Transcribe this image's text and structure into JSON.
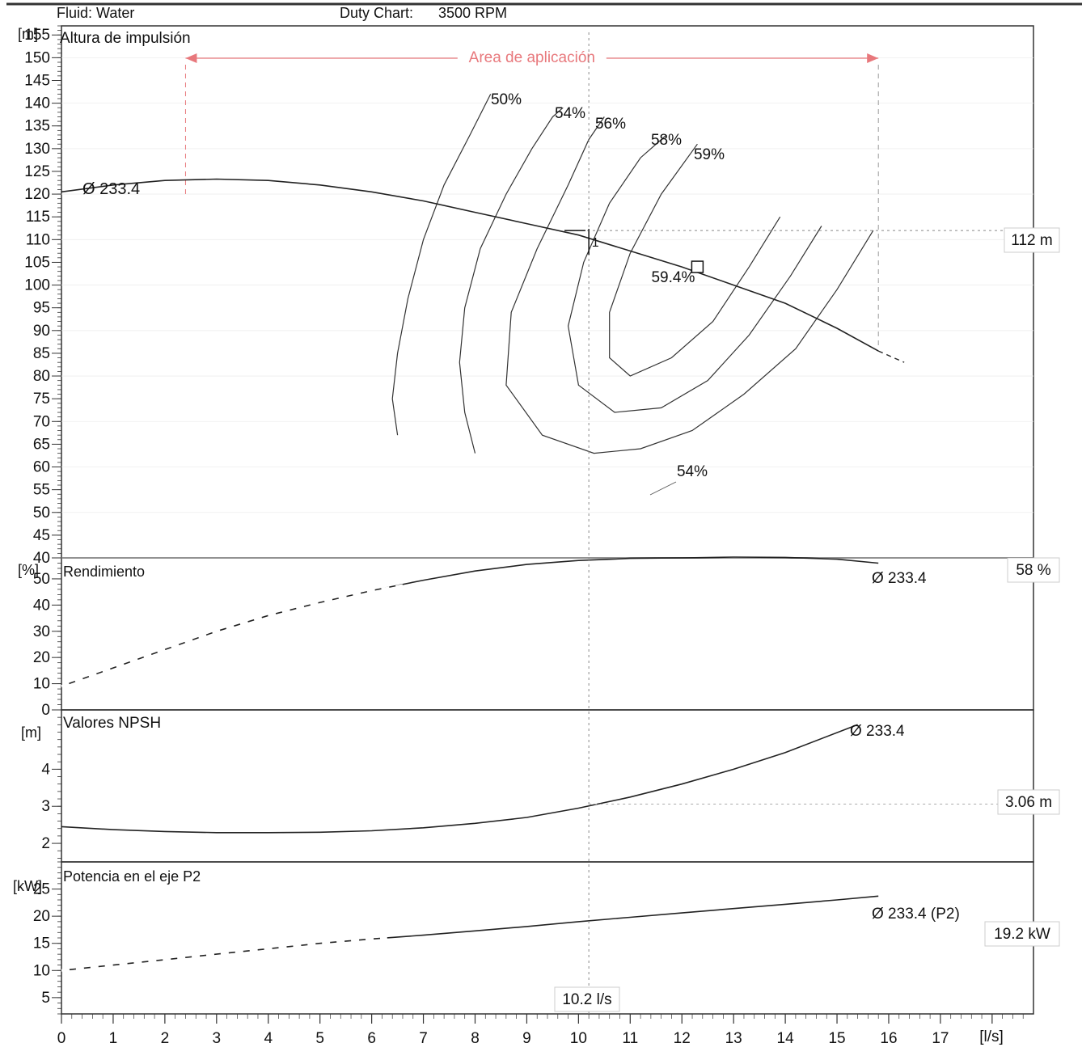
{
  "header": {
    "fluid": "Fluid: Water",
    "duty_chart_label": "Duty Chart:",
    "speed": "3500 RPM"
  },
  "panels": {
    "head": {
      "title": "Altura de impulsión",
      "unit": "[m]"
    },
    "efficiency": {
      "title": "Rendimiento",
      "unit": "[%]"
    },
    "npsh": {
      "title": "Valores NPSH",
      "unit": "[m]"
    },
    "power": {
      "title": "Potencia en el eje P2",
      "unit": "[kW]"
    }
  },
  "application_area": {
    "label": "Area de aplicación",
    "q_start": 2.4,
    "q_end": 15.8
  },
  "duty_point": {
    "flow": 10.2,
    "flow_label": "10.2 l/s",
    "point_label": "1",
    "head": 112,
    "head_label": "112 m",
    "efficiency_label": "58 %",
    "npsh": 3.06,
    "npsh_label": "3.06 m",
    "power": 19.2,
    "power_label": "19.2 kW"
  },
  "bep": {
    "flow": 12.3,
    "head": 104,
    "label": "59.4%"
  },
  "colors": {
    "curve": "#222222",
    "axis": "#333333",
    "area": "#e8787c",
    "grid": "#bbbbbb"
  },
  "chart_data": [
    {
      "type": "line",
      "title": "Altura de impulsión",
      "ylabel": "[m]",
      "xlabel": "[l/s]",
      "xlim": [
        0,
        18.8
      ],
      "ylim": [
        40,
        157
      ],
      "x_ticks": [
        0,
        1,
        2,
        3,
        4,
        5,
        6,
        7,
        8,
        9,
        10,
        11,
        12,
        13,
        14,
        15,
        16,
        17
      ],
      "y_ticks": [
        40,
        45,
        50,
        55,
        60,
        65,
        70,
        75,
        80,
        85,
        90,
        95,
        100,
        105,
        110,
        115,
        120,
        125,
        130,
        135,
        140,
        145,
        150,
        155
      ],
      "series": [
        {
          "name": "Ø 233.4",
          "x": [
            0,
            1,
            2,
            3,
            4,
            5,
            6,
            7,
            8,
            9,
            10,
            11,
            12,
            13,
            14,
            15,
            15.8
          ],
          "y": [
            120.5,
            122,
            123,
            123.3,
            123,
            122,
            120.5,
            118.5,
            116,
            113.5,
            111,
            107.5,
            104,
            100,
            96,
            90.5,
            85.5
          ]
        }
      ],
      "iso_efficiency": [
        {
          "label": "50%",
          "x": [
            6.5,
            6.4,
            6.5,
            6.7,
            7.0,
            7.4,
            7.9,
            8.3
          ],
          "y": [
            67,
            75,
            85,
            97,
            110,
            122,
            133,
            142
          ]
        },
        {
          "label": "54%",
          "x": [
            8.0,
            7.8,
            7.7,
            7.8,
            8.1,
            8.6,
            9.1,
            9.5,
            9.7
          ],
          "y": [
            63,
            72,
            83,
            95,
            108,
            120,
            130,
            137,
            139
          ]
        },
        {
          "label": "56%",
          "x": [
            15.7,
            15.0,
            14.2,
            13.2,
            12.2,
            11.2,
            10.3,
            9.3,
            8.6,
            8.7,
            9.2,
            9.8,
            10.2,
            10.5
          ],
          "y": [
            112,
            99,
            86,
            76,
            68,
            64,
            63,
            67,
            78,
            94,
            108,
            122,
            132,
            137
          ]
        },
        {
          "label": "58%",
          "x": [
            14.7,
            14.1,
            13.3,
            12.5,
            11.6,
            10.7,
            10.0,
            9.8,
            10.1,
            10.6,
            11.2,
            11.7
          ],
          "y": [
            113,
            102,
            89,
            79,
            73,
            72,
            78,
            91,
            105,
            118,
            128,
            133
          ]
        },
        {
          "label": "59%",
          "x": [
            13.9,
            13.3,
            12.6,
            11.8,
            11.0,
            10.6,
            10.6,
            11.0,
            11.6,
            12.3
          ],
          "y": [
            115,
            104,
            92,
            84,
            80,
            84,
            94,
            107,
            120,
            131
          ]
        }
      ]
    },
    {
      "type": "line",
      "title": "Rendimiento",
      "ylabel": "[%]",
      "xlim": [
        0,
        18.8
      ],
      "ylim": [
        0,
        58
      ],
      "y_ticks": [
        0,
        10,
        20,
        30,
        40,
        50
      ],
      "series": [
        {
          "name": "Ø 233.4",
          "x": [
            0,
            1,
            2,
            3,
            4,
            5,
            6,
            7,
            8,
            9,
            10,
            11,
            12,
            13,
            14,
            15,
            15.8
          ],
          "y": [
            9,
            16,
            23,
            30,
            36,
            41,
            45.5,
            49.5,
            53,
            55.5,
            57,
            57.8,
            58,
            58.3,
            58.2,
            57.5,
            56
          ]
        }
      ]
    },
    {
      "type": "line",
      "title": "Valores NPSH",
      "ylabel": "[m]",
      "xlim": [
        0,
        18.8
      ],
      "ylim": [
        1.5,
        5.6
      ],
      "y_ticks": [
        2,
        3,
        4
      ],
      "series": [
        {
          "name": "Ø 233.4",
          "x": [
            0,
            1,
            2,
            3,
            4,
            5,
            6,
            7,
            8,
            9,
            10,
            11,
            12,
            13,
            14,
            15.4
          ],
          "y": [
            2.45,
            2.37,
            2.32,
            2.29,
            2.29,
            2.3,
            2.34,
            2.42,
            2.54,
            2.7,
            2.95,
            3.25,
            3.6,
            4.0,
            4.45,
            5.2
          ]
        }
      ]
    },
    {
      "type": "line",
      "title": "Potencia en el eje P2",
      "ylabel": "[kW]",
      "xlim": [
        0,
        18.8
      ],
      "ylim": [
        2,
        30
      ],
      "y_ticks": [
        5,
        10,
        15,
        20,
        25
      ],
      "series": [
        {
          "name": "Ø 233.4 (P2)",
          "x": [
            0,
            1,
            2,
            3,
            4,
            5,
            6,
            7,
            8,
            9,
            10,
            11,
            12,
            13,
            14,
            15,
            15.8
          ],
          "y": [
            10,
            11,
            12,
            13,
            14,
            15,
            15.8,
            16.5,
            17.3,
            18.1,
            19,
            19.8,
            20.6,
            21.4,
            22.2,
            23,
            23.7
          ]
        }
      ]
    }
  ]
}
